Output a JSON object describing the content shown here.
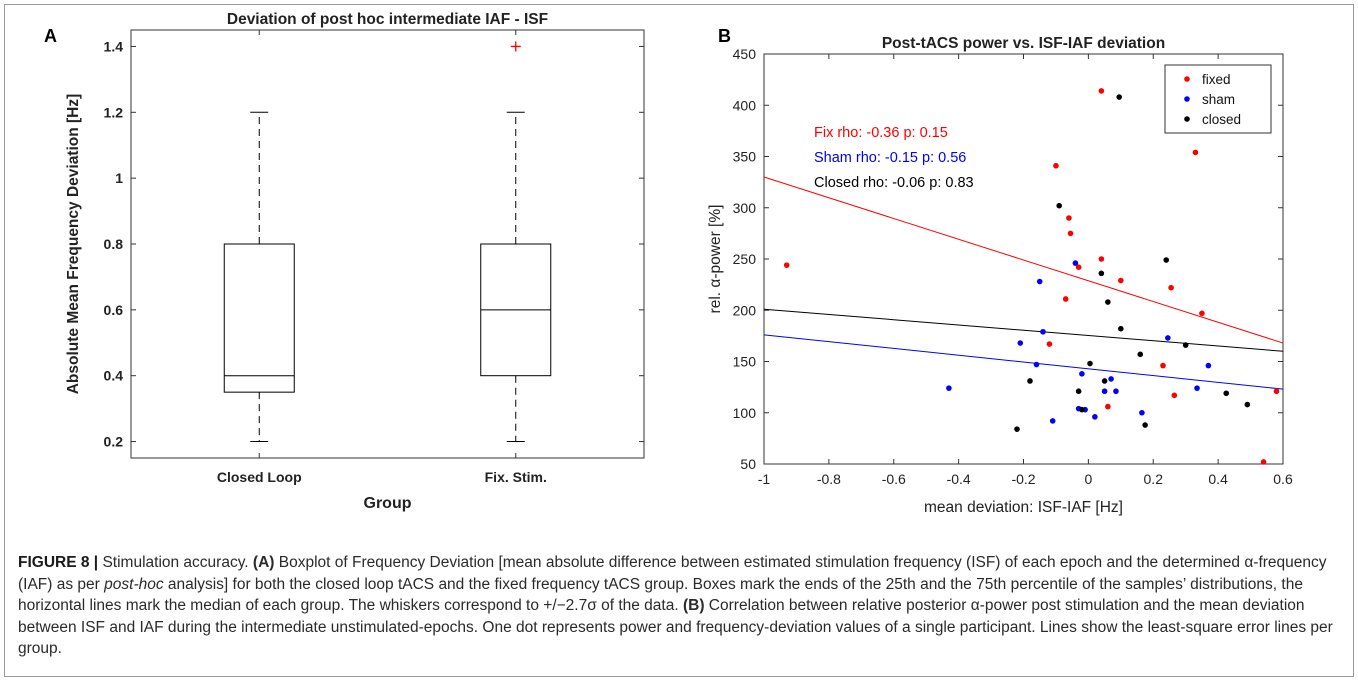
{
  "figure": {
    "caption_label": "FIGURE 8 |",
    "caption_segments": [
      {
        "t": " Stimulation accuracy. ",
        "s": "n"
      },
      {
        "t": "(A)",
        "s": "b"
      },
      {
        "t": " Boxplot of Frequency Deviation [mean absolute difference between estimated stimulation frequency (ISF) of each epoch and the determined α-frequency (IAF) as per ",
        "s": "n"
      },
      {
        "t": "post-hoc",
        "s": "i"
      },
      {
        "t": " analysis] for both the closed loop tACS and the fixed frequency tACS group. Boxes mark the ends of the 25th and the 75th percentile of the samples’ distributions, the horizontal lines mark the median of each group. The whiskers correspond to +/−2.7σ of the data. ",
        "s": "n"
      },
      {
        "t": "(B)",
        "s": "b"
      },
      {
        "t": " Correlation between relative posterior α-power post stimulation and the mean deviation between ISF and IAF during the intermediate unstimulated-epochs. One dot represents power and frequency-deviation values of a single participant. Lines show the least-square error lines per group.",
        "s": "n"
      }
    ]
  },
  "chart_data": [
    {
      "panel": "A",
      "type": "box",
      "title": "Deviation of post hoc intermediate IAF - ISF",
      "xlabel": "Group",
      "ylabel": "Absolute Mean Frequency Deviation [Hz]",
      "ylim": [
        0.15,
        1.45
      ],
      "yticks": [
        0.2,
        0.4,
        0.6,
        0.8,
        1,
        1.2,
        1.4
      ],
      "ytick_labels": [
        "0.2",
        "0.4",
        "0.6",
        "0.8",
        "1",
        "1.2",
        "1.4"
      ],
      "grid": false,
      "categories": [
        "Closed Loop",
        "Fix. Stim."
      ],
      "boxes": [
        {
          "whisker_low": 0.2,
          "q1": 0.35,
          "median": 0.4,
          "q3": 0.8,
          "whisker_high": 1.2,
          "outliers": []
        },
        {
          "whisker_low": 0.2,
          "q1": 0.4,
          "median": 0.6,
          "q3": 0.8,
          "whisker_high": 1.2,
          "outliers": [
            1.4
          ]
        }
      ],
      "colors": {
        "box": "#000000",
        "outlier": "#ff0000"
      }
    },
    {
      "panel": "B",
      "type": "scatter",
      "title": "Post-tACS power vs. ISF-IAF deviation",
      "xlabel": "mean deviation: ISF-IAF [Hz]",
      "ylabel": "rel. α-power [%]",
      "xlim": [
        -1,
        0.6
      ],
      "ylim": [
        50,
        450
      ],
      "xticks": [
        -1,
        -0.8,
        -0.6,
        -0.4,
        -0.2,
        0,
        0.2,
        0.4,
        0.6
      ],
      "xtick_labels": [
        "-1",
        "-0.8",
        "-0.6",
        "-0.4",
        "-0.2",
        "0",
        "0.2",
        "0.4",
        "0.6"
      ],
      "yticks": [
        50,
        100,
        150,
        200,
        250,
        300,
        350,
        400,
        450
      ],
      "ytick_labels": [
        "50",
        "100",
        "150",
        "200",
        "250",
        "300",
        "350",
        "400",
        "450"
      ],
      "grid": false,
      "legend_position": "top-right",
      "series": [
        {
          "name": "fixed",
          "color": "#ff0000",
          "points": [
            [
              -0.93,
              244
            ],
            [
              -0.1,
              341
            ],
            [
              -0.06,
              290
            ],
            [
              -0.055,
              275
            ],
            [
              -0.07,
              211
            ],
            [
              -0.03,
              242
            ],
            [
              0.04,
              414
            ],
            [
              0.04,
              250
            ],
            [
              0.1,
              229
            ],
            [
              0.06,
              106
            ],
            [
              0.255,
              222
            ],
            [
              0.33,
              354
            ],
            [
              0.35,
              197
            ],
            [
              0.23,
              146
            ],
            [
              0.265,
              117
            ],
            [
              0.58,
              121
            ],
            [
              -0.12,
              167
            ],
            [
              0.54,
              52
            ]
          ],
          "fit": [
            [
              -1,
              330
            ],
            [
              0.6,
              168
            ]
          ],
          "annotation": "Fix rho: -0.36 p: 0.15"
        },
        {
          "name": "sham",
          "color": "#0000ff",
          "points": [
            [
              -0.43,
              124
            ],
            [
              -0.21,
              168
            ],
            [
              -0.16,
              147
            ],
            [
              -0.15,
              228
            ],
            [
              -0.14,
              179
            ],
            [
              -0.11,
              92
            ],
            [
              -0.04,
              246
            ],
            [
              -0.03,
              104
            ],
            [
              -0.02,
              138
            ],
            [
              -0.01,
              103
            ],
            [
              0.02,
              96
            ],
            [
              0.05,
              121
            ],
            [
              0.07,
              133
            ],
            [
              0.085,
              121
            ],
            [
              0.165,
              100
            ],
            [
              0.245,
              173
            ],
            [
              0.335,
              124
            ],
            [
              0.37,
              146
            ]
          ],
          "fit": [
            [
              -1,
              176
            ],
            [
              0.6,
              123
            ]
          ],
          "annotation": "Sham rho: -0.15 p: 0.56"
        },
        {
          "name": "closed",
          "color": "#000000",
          "points": [
            [
              -0.09,
              302
            ],
            [
              0.095,
              408
            ],
            [
              0.04,
              236
            ],
            [
              0.06,
              208
            ],
            [
              0.24,
              249
            ],
            [
              0.1,
              182
            ],
            [
              0.16,
              157
            ],
            [
              0.3,
              166
            ],
            [
              0.005,
              148
            ],
            [
              -0.18,
              131
            ],
            [
              -0.03,
              121
            ],
            [
              0.05,
              131
            ],
            [
              -0.22,
              84
            ],
            [
              -0.02,
              103
            ],
            [
              0.175,
              88
            ],
            [
              0.425,
              119
            ],
            [
              0.49,
              108
            ]
          ],
          "fit": [
            [
              -1,
              201
            ],
            [
              0.6,
              160
            ]
          ],
          "annotation": "Closed rho: -0.06 p: 0.83"
        }
      ]
    }
  ]
}
